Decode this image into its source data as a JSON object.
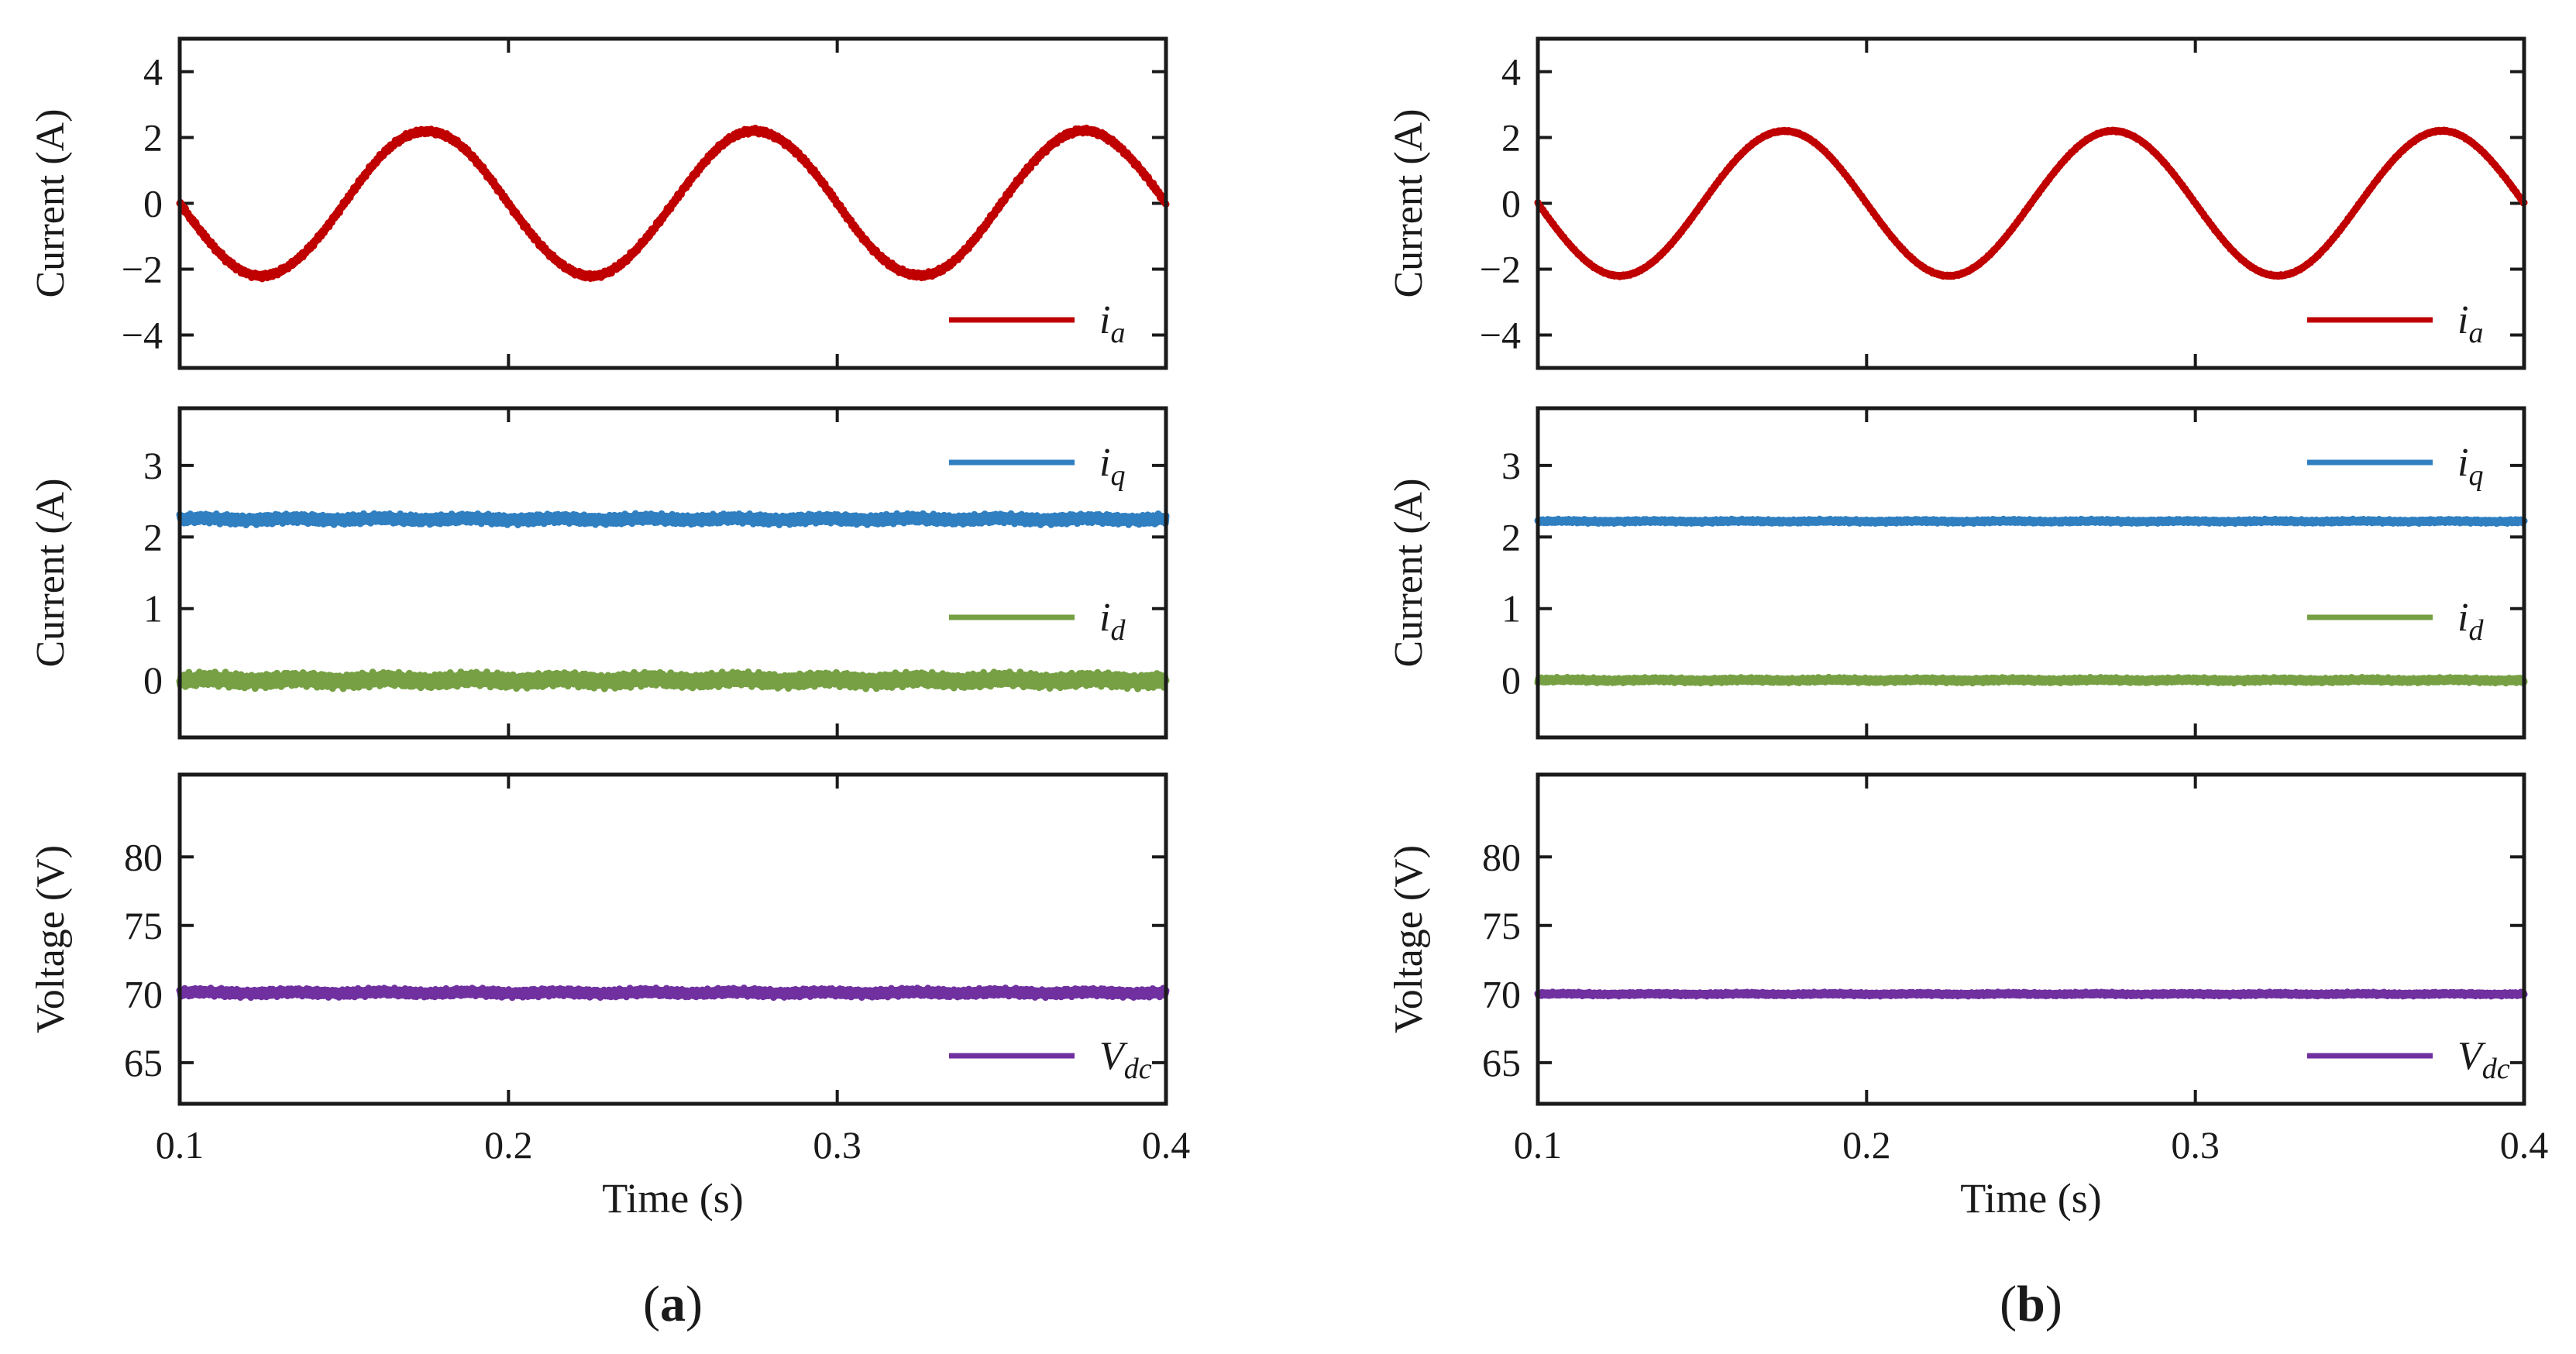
{
  "chart_data": [
    {
      "id": "a",
      "caption_letter": "a",
      "x_label": "Time (s)",
      "x_ticks": [
        "0.1",
        "0.2",
        "0.3",
        "0.4"
      ],
      "xlim": [
        0.1,
        0.4
      ],
      "panels": [
        {
          "type": "line",
          "ylabel": "Current (A)",
          "ylim": [
            -5,
            5
          ],
          "yticks": [
            "4",
            "2",
            "0",
            "−2",
            "−4"
          ],
          "ytick_values": [
            4,
            2,
            0,
            -2,
            -4
          ],
          "series": [
            {
              "name": "i",
              "sub": "a",
              "color": "#c00000",
              "shape": "sine",
              "amplitude": 2.2,
              "frequency_hz": 10,
              "offset": 0,
              "ripple": 0.1
            }
          ]
        },
        {
          "type": "line",
          "ylabel": "Current (A)",
          "ylim": [
            -0.8,
            3.8
          ],
          "yticks": [
            "3",
            "2",
            "1",
            "0"
          ],
          "ytick_values": [
            3,
            2,
            1,
            0
          ],
          "series": [
            {
              "name": "i",
              "sub": "q",
              "color": "#2f7fc1",
              "shape": "const",
              "offset": 2.25,
              "ripple": 0.08
            },
            {
              "name": "i",
              "sub": "d",
              "color": "#76a043",
              "shape": "const",
              "offset": 0.0,
              "ripple": 0.12
            }
          ]
        },
        {
          "type": "line",
          "ylabel": "Voltage (V)",
          "ylim": [
            62,
            86
          ],
          "yticks": [
            "80",
            "75",
            "70",
            "65"
          ],
          "ytick_values": [
            80,
            75,
            70,
            65
          ],
          "series": [
            {
              "name": "V",
              "sub": "dc",
              "color": "#7030a0",
              "shape": "const",
              "offset": 70.1,
              "ripple": 0.35
            }
          ]
        }
      ]
    },
    {
      "id": "b",
      "caption_letter": "b",
      "x_label": "Time (s)",
      "x_ticks": [
        "0.1",
        "0.2",
        "0.3",
        "0.4"
      ],
      "xlim": [
        0.1,
        0.4
      ],
      "panels": [
        {
          "type": "line",
          "ylabel": "Current (A)",
          "ylim": [
            -5,
            5
          ],
          "yticks": [
            "4",
            "2",
            "0",
            "−2",
            "−4"
          ],
          "ytick_values": [
            4,
            2,
            0,
            -2,
            -4
          ],
          "series": [
            {
              "name": "i",
              "sub": "a",
              "color": "#c00000",
              "shape": "sine",
              "amplitude": 2.2,
              "frequency_hz": 10,
              "offset": 0,
              "ripple": 0.03
            }
          ]
        },
        {
          "type": "line",
          "ylabel": "Current (A)",
          "ylim": [
            -0.8,
            3.8
          ],
          "yticks": [
            "3",
            "2",
            "1",
            "0"
          ],
          "ytick_values": [
            3,
            2,
            1,
            0
          ],
          "series": [
            {
              "name": "i",
              "sub": "q",
              "color": "#2f7fc1",
              "shape": "const",
              "offset": 2.22,
              "ripple": 0.03
            },
            {
              "name": "i",
              "sub": "d",
              "color": "#76a043",
              "shape": "const",
              "offset": 0.0,
              "ripple": 0.04
            }
          ]
        },
        {
          "type": "line",
          "ylabel": "Voltage (V)",
          "ylim": [
            62,
            86
          ],
          "yticks": [
            "80",
            "75",
            "70",
            "65"
          ],
          "ytick_values": [
            80,
            75,
            70,
            65
          ],
          "series": [
            {
              "name": "V",
              "sub": "dc",
              "color": "#7030a0",
              "shape": "const",
              "offset": 70.0,
              "ripple": 0.15
            }
          ]
        }
      ]
    }
  ]
}
